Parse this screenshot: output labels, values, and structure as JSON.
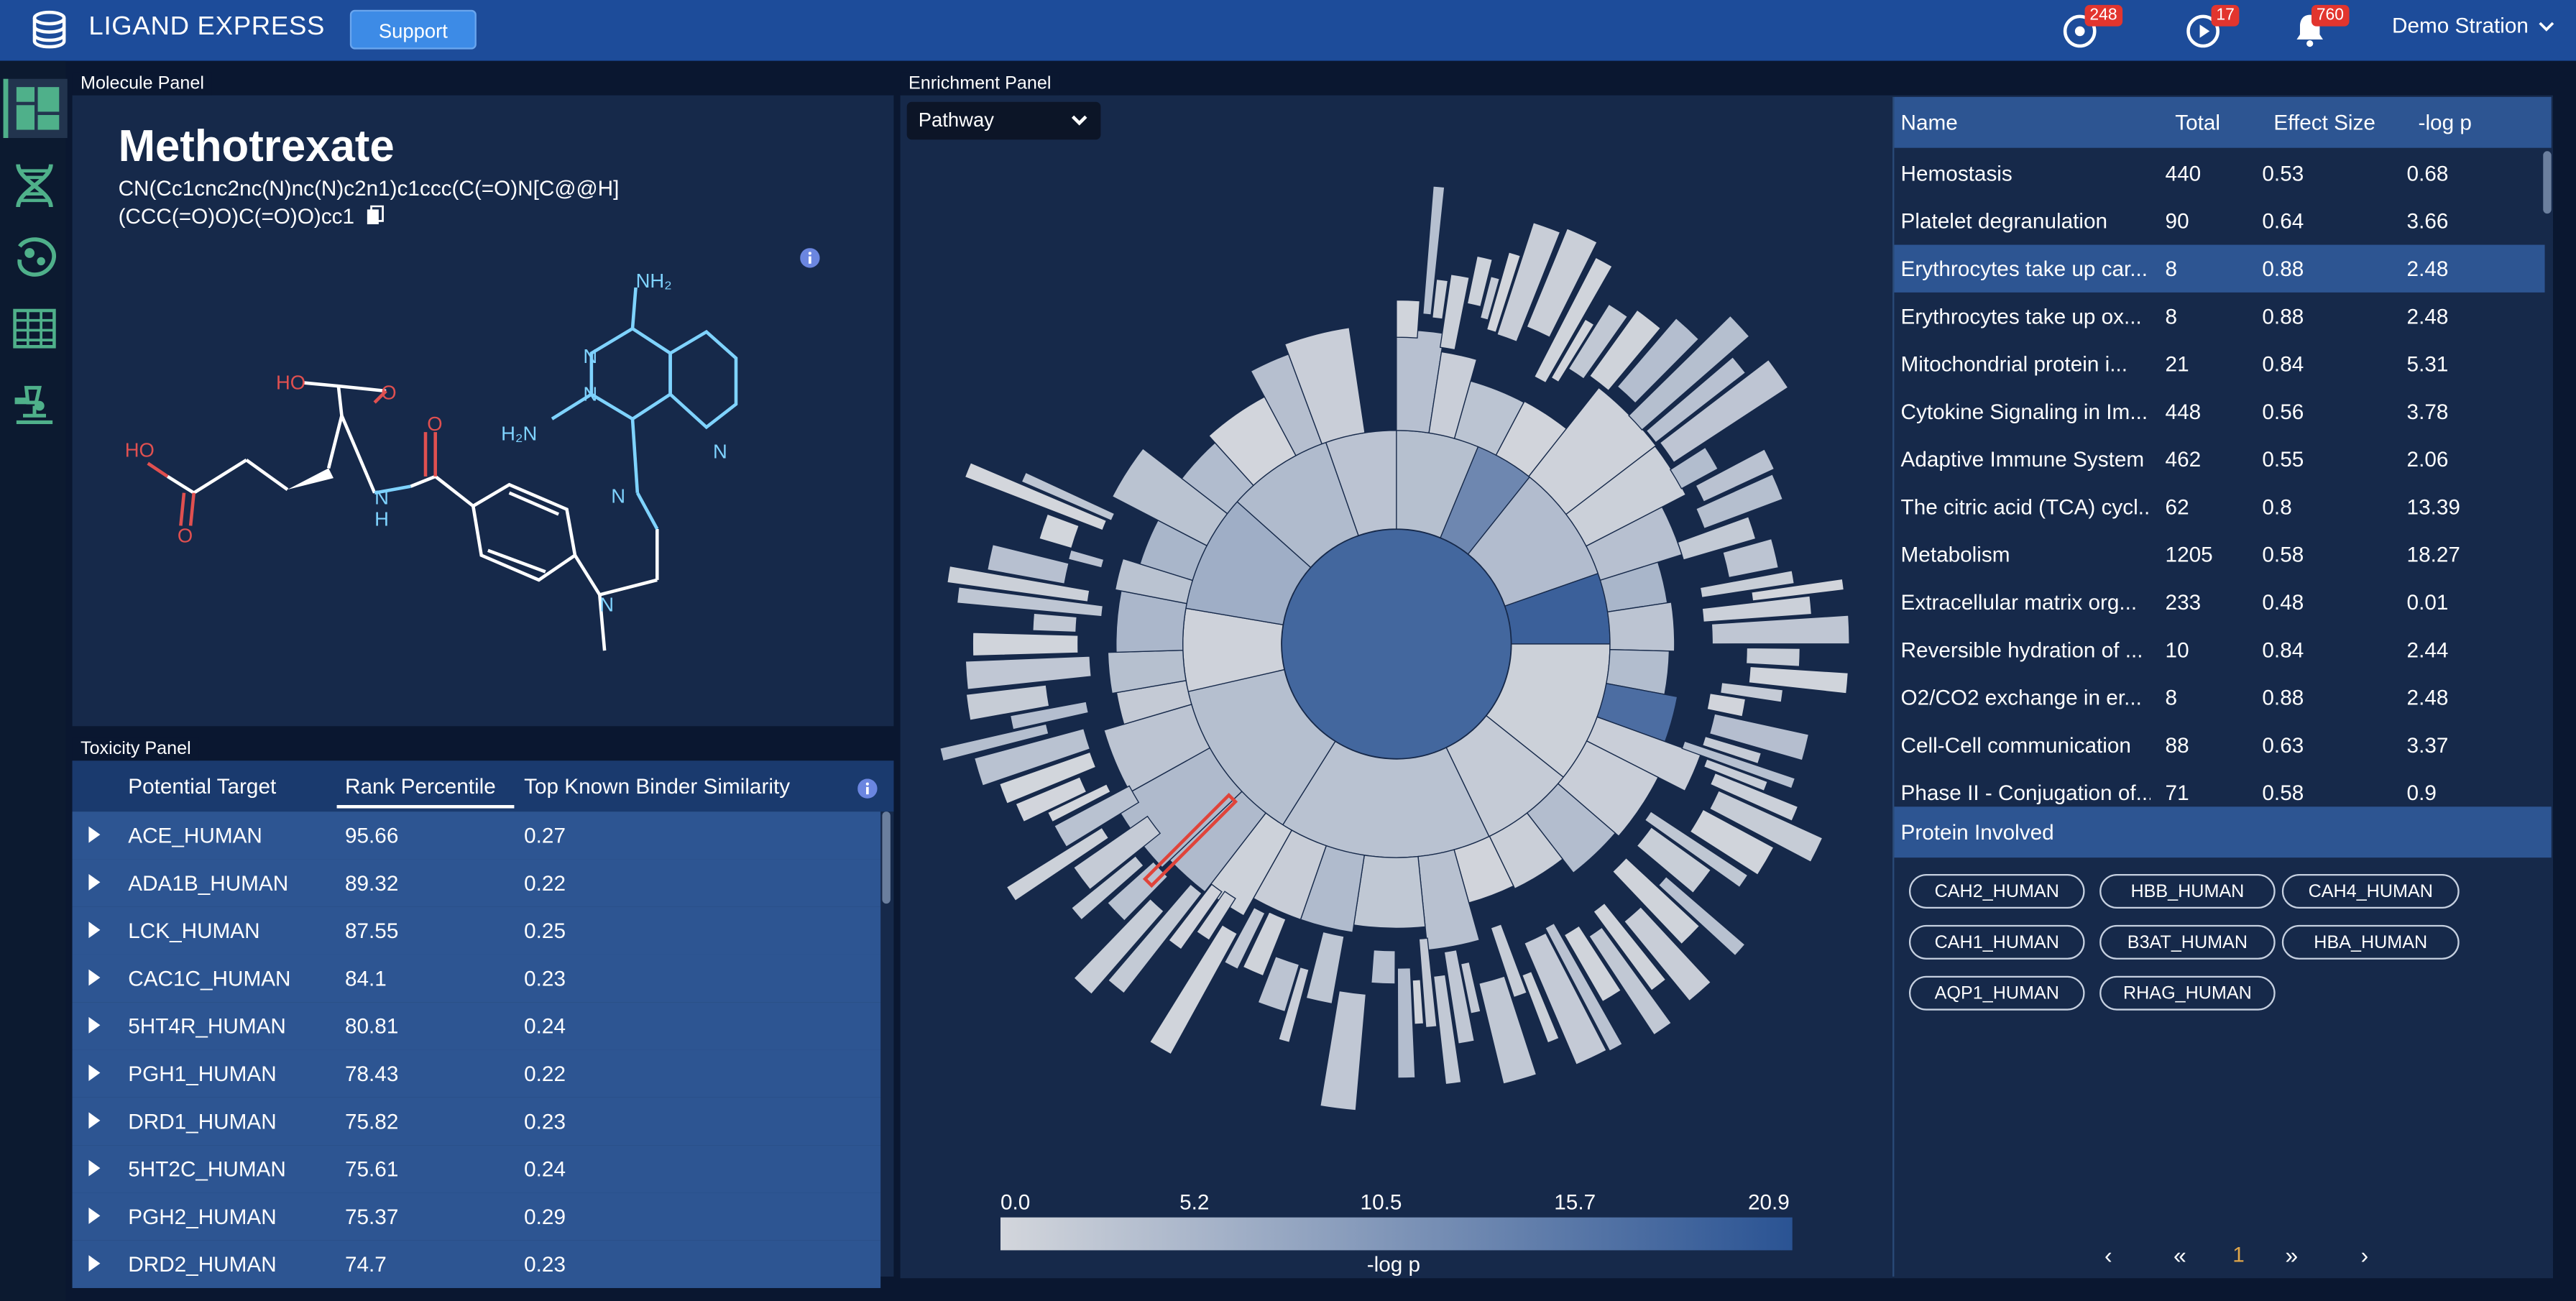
{
  "header": {
    "app_title": "LIGAND EXPRESS",
    "support_label": "Support",
    "badge_tasks": "248",
    "badge_messages": "17",
    "badge_notifications": "760",
    "user_name": "Demo Stration",
    "icons": [
      "logo-icon",
      "tasks-icon",
      "messages-icon",
      "bell-icon",
      "chevron-down-icon"
    ]
  },
  "sidebar": {
    "items": [
      "dashboard",
      "dna",
      "pathway-map",
      "table-view",
      "microscope"
    ]
  },
  "molecule_panel": {
    "label": "Molecule Panel",
    "name": "Methotrexate",
    "smiles_line1": "CN(Cc1cnc2nc(N)nc(N)c2n1)c1ccc(C(=O)N[C@@H]",
    "smiles_line2": "(CCC(=O)O)C(=O)O)cc1",
    "atoms": {
      "nh2_top": "NH₂",
      "h2n_left": "H₂N",
      "ho_1": "HO",
      "ho_2": "HO",
      "o": "O",
      "n": "N",
      "h": "H"
    }
  },
  "toxicity_panel": {
    "label": "Toxicity Panel",
    "columns": [
      "Potential Target",
      "Rank Percentile",
      "Top Known Binder Similarity"
    ],
    "rows": [
      {
        "target": "ACE_HUMAN",
        "rank": "95.66",
        "sim": "0.27"
      },
      {
        "target": "ADA1B_HUMAN",
        "rank": "89.32",
        "sim": "0.22"
      },
      {
        "target": "LCK_HUMAN",
        "rank": "87.55",
        "sim": "0.25"
      },
      {
        "target": "CAC1C_HUMAN",
        "rank": "84.1",
        "sim": "0.23"
      },
      {
        "target": "5HT4R_HUMAN",
        "rank": "80.81",
        "sim": "0.24"
      },
      {
        "target": "PGH1_HUMAN",
        "rank": "78.43",
        "sim": "0.22"
      },
      {
        "target": "DRD1_HUMAN",
        "rank": "75.82",
        "sim": "0.23"
      },
      {
        "target": "5HT2C_HUMAN",
        "rank": "75.61",
        "sim": "0.24"
      },
      {
        "target": "PGH2_HUMAN",
        "rank": "75.37",
        "sim": "0.29"
      },
      {
        "target": "DRD2_HUMAN",
        "rank": "74.7",
        "sim": "0.23"
      }
    ]
  },
  "enrichment_panel": {
    "label": "Enrichment Panel",
    "select_value": "Pathway",
    "legend_ticks": [
      "0.0",
      "5.2",
      "10.5",
      "15.7",
      "20.9"
    ],
    "legend_label": "-log p",
    "color_low": "#d3d6dc",
    "color_high": "#2a5393",
    "table": {
      "columns": [
        "Name",
        "Total",
        "Effect Size",
        "-log p"
      ],
      "rows": [
        {
          "name": "Hemostasis",
          "total": "440",
          "effect": "0.53",
          "logp": "0.68"
        },
        {
          "name": "Platelet degranulation",
          "total": "90",
          "effect": "0.64",
          "logp": "3.66"
        },
        {
          "name": "Erythrocytes take up car...",
          "total": "8",
          "effect": "0.88",
          "logp": "2.48"
        },
        {
          "name": "Erythrocytes take up ox...",
          "total": "8",
          "effect": "0.88",
          "logp": "2.48"
        },
        {
          "name": "Mitochondrial protein i...",
          "total": "21",
          "effect": "0.84",
          "logp": "5.31"
        },
        {
          "name": "Cytokine Signaling in Im...",
          "total": "448",
          "effect": "0.56",
          "logp": "3.78"
        },
        {
          "name": "Adaptive Immune System",
          "total": "462",
          "effect": "0.55",
          "logp": "2.06"
        },
        {
          "name": "The citric acid (TCA) cycl...",
          "total": "62",
          "effect": "0.8",
          "logp": "13.39"
        },
        {
          "name": "Metabolism",
          "total": "1205",
          "effect": "0.58",
          "logp": "18.27"
        },
        {
          "name": "Extracellular matrix org...",
          "total": "233",
          "effect": "0.48",
          "logp": "0.01"
        },
        {
          "name": "Reversible hydration of ...",
          "total": "10",
          "effect": "0.84",
          "logp": "2.44"
        },
        {
          "name": "O2/CO2 exchange in er...",
          "total": "8",
          "effect": "0.88",
          "logp": "2.48"
        },
        {
          "name": "Cell-Cell communication",
          "total": "88",
          "effect": "0.63",
          "logp": "3.37"
        },
        {
          "name": "Phase II - Conjugation of...",
          "total": "71",
          "effect": "0.58",
          "logp": "0.9"
        }
      ]
    },
    "proteins_label": "Protein Involved",
    "proteins": [
      "CAH2_HUMAN",
      "HBB_HUMAN",
      "CAH4_HUMAN",
      "CAH1_HUMAN",
      "B3AT_HUMAN",
      "HBA_HUMAN",
      "AQP1_HUMAN",
      "RHAG_HUMAN"
    ],
    "pager": {
      "prev_all": "«",
      "prev": "‹",
      "page": "1",
      "next": "›",
      "next_all": "»"
    }
  }
}
